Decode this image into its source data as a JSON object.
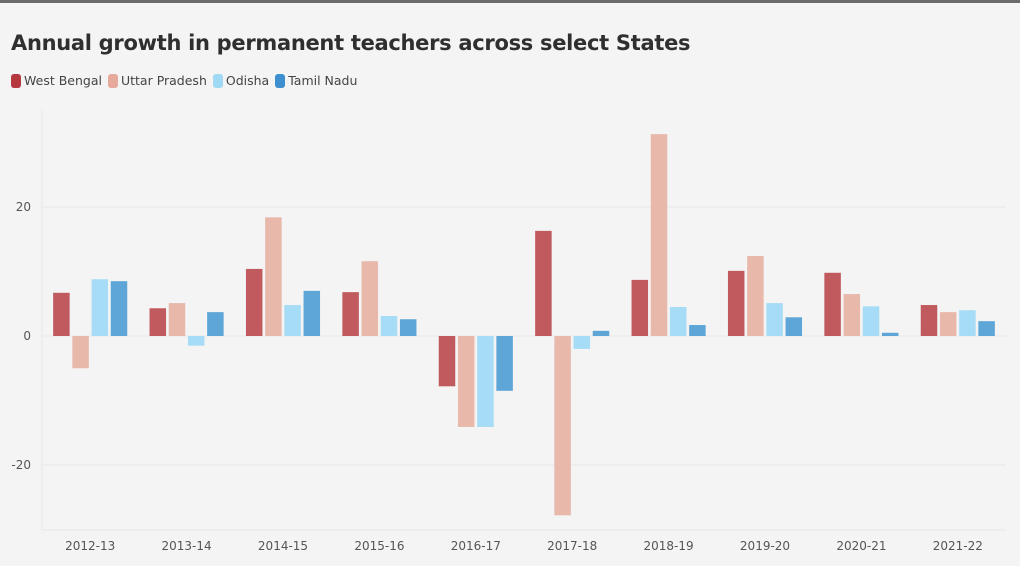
{
  "chart_data": {
    "type": "bar",
    "title": "Annual growth in permanent teachers across select States",
    "xlabel": "",
    "ylabel": "",
    "categories": [
      "2012-13",
      "2013-14",
      "2014-15",
      "2015-16",
      "2016-17",
      "2017-18",
      "2018-19",
      "2019-20",
      "2020-21",
      "2021-22"
    ],
    "ylim": [
      -30,
      35
    ],
    "yticks": [
      -20,
      0,
      20
    ],
    "grid": true,
    "legend_position": "top-left",
    "series": [
      {
        "name": "West Bengal",
        "color": "#c05a5e",
        "legend_color": "#b5383f",
        "values": [
          6.7,
          4.3,
          10.4,
          6.8,
          -7.8,
          16.3,
          8.7,
          10.1,
          9.8,
          4.8
        ]
      },
      {
        "name": "Uttar Pradesh",
        "color": "#e8b8ab",
        "legend_color": "#e6a99a",
        "values": [
          -5.0,
          5.1,
          18.4,
          11.6,
          -14.1,
          -27.8,
          31.3,
          12.4,
          6.5,
          3.7
        ]
      },
      {
        "name": "Odisha",
        "color": "#a6dcf5",
        "legend_color": "#9fd9f3",
        "values": [
          8.8,
          -1.5,
          4.8,
          3.1,
          -14.1,
          -2.0,
          4.5,
          5.1,
          4.6,
          4.0
        ]
      },
      {
        "name": "Tamil Nadu",
        "color": "#5ea6d8",
        "legend_color": "#3d8fcf",
        "values": [
          8.5,
          3.7,
          7.0,
          2.6,
          -8.5,
          0.8,
          1.7,
          2.9,
          0.5,
          2.3
        ]
      }
    ]
  }
}
